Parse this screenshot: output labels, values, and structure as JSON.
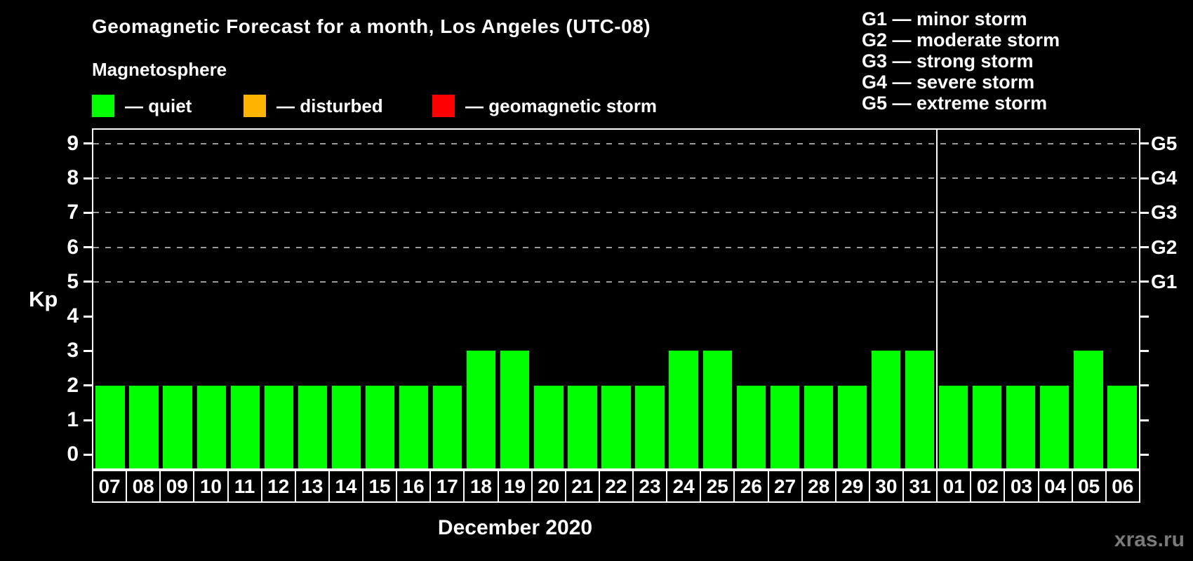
{
  "title": "Geomagnetic Forecast for a month, Los Angeles (UTC-08)",
  "subtitle": "Magnetosphere",
  "condition_legend": [
    {
      "key": "quiet",
      "swatch_color": "#00ff00",
      "label": "— quiet"
    },
    {
      "key": "disturbed",
      "swatch_color": "#ffb400",
      "label": "— disturbed"
    },
    {
      "key": "storm",
      "swatch_color": "#ff0000",
      "label": "— geomagnetic storm"
    }
  ],
  "storm_scale_legend": [
    "G1 — minor storm",
    "G2 — moderate storm",
    "G3 — strong storm",
    "G4 — severe storm",
    "G5 — extreme storm"
  ],
  "watermark": "xras.ru",
  "chart_data": {
    "type": "bar",
    "title": "Geomagnetic Forecast for a month, Los Angeles (UTC-08)",
    "xlabel": "December 2020",
    "ylabel": "Kp",
    "categories": [
      "07",
      "08",
      "09",
      "10",
      "11",
      "12",
      "13",
      "14",
      "15",
      "16",
      "17",
      "18",
      "19",
      "20",
      "21",
      "22",
      "23",
      "24",
      "25",
      "26",
      "27",
      "28",
      "29",
      "30",
      "31",
      "01",
      "02",
      "03",
      "04",
      "05",
      "06"
    ],
    "values": [
      2,
      2,
      2,
      2,
      2,
      2,
      2,
      2,
      2,
      2,
      2,
      3,
      3,
      2,
      2,
      2,
      2,
      3,
      3,
      2,
      2,
      2,
      2,
      3,
      3,
      2,
      2,
      2,
      2,
      3,
      2
    ],
    "bar_color": "#00ff00",
    "ylim": [
      -0.4,
      9.4
    ],
    "yticks": [
      0,
      1,
      2,
      3,
      4,
      5,
      6,
      7,
      8,
      9
    ],
    "grid_kp_levels": [
      5,
      6,
      7,
      8,
      9
    ],
    "right_axis_labels": [
      {
        "kp": 5,
        "label": "G1"
      },
      {
        "kp": 6,
        "label": "G2"
      },
      {
        "kp": 7,
        "label": "G3"
      },
      {
        "kp": 8,
        "label": "G4"
      },
      {
        "kp": 9,
        "label": "G5"
      }
    ],
    "month_separator_after_category": "31",
    "grid_on": true,
    "grid_color": "#9a9a9a",
    "axis_color": "#ffffff",
    "legend_position": "top-left"
  }
}
